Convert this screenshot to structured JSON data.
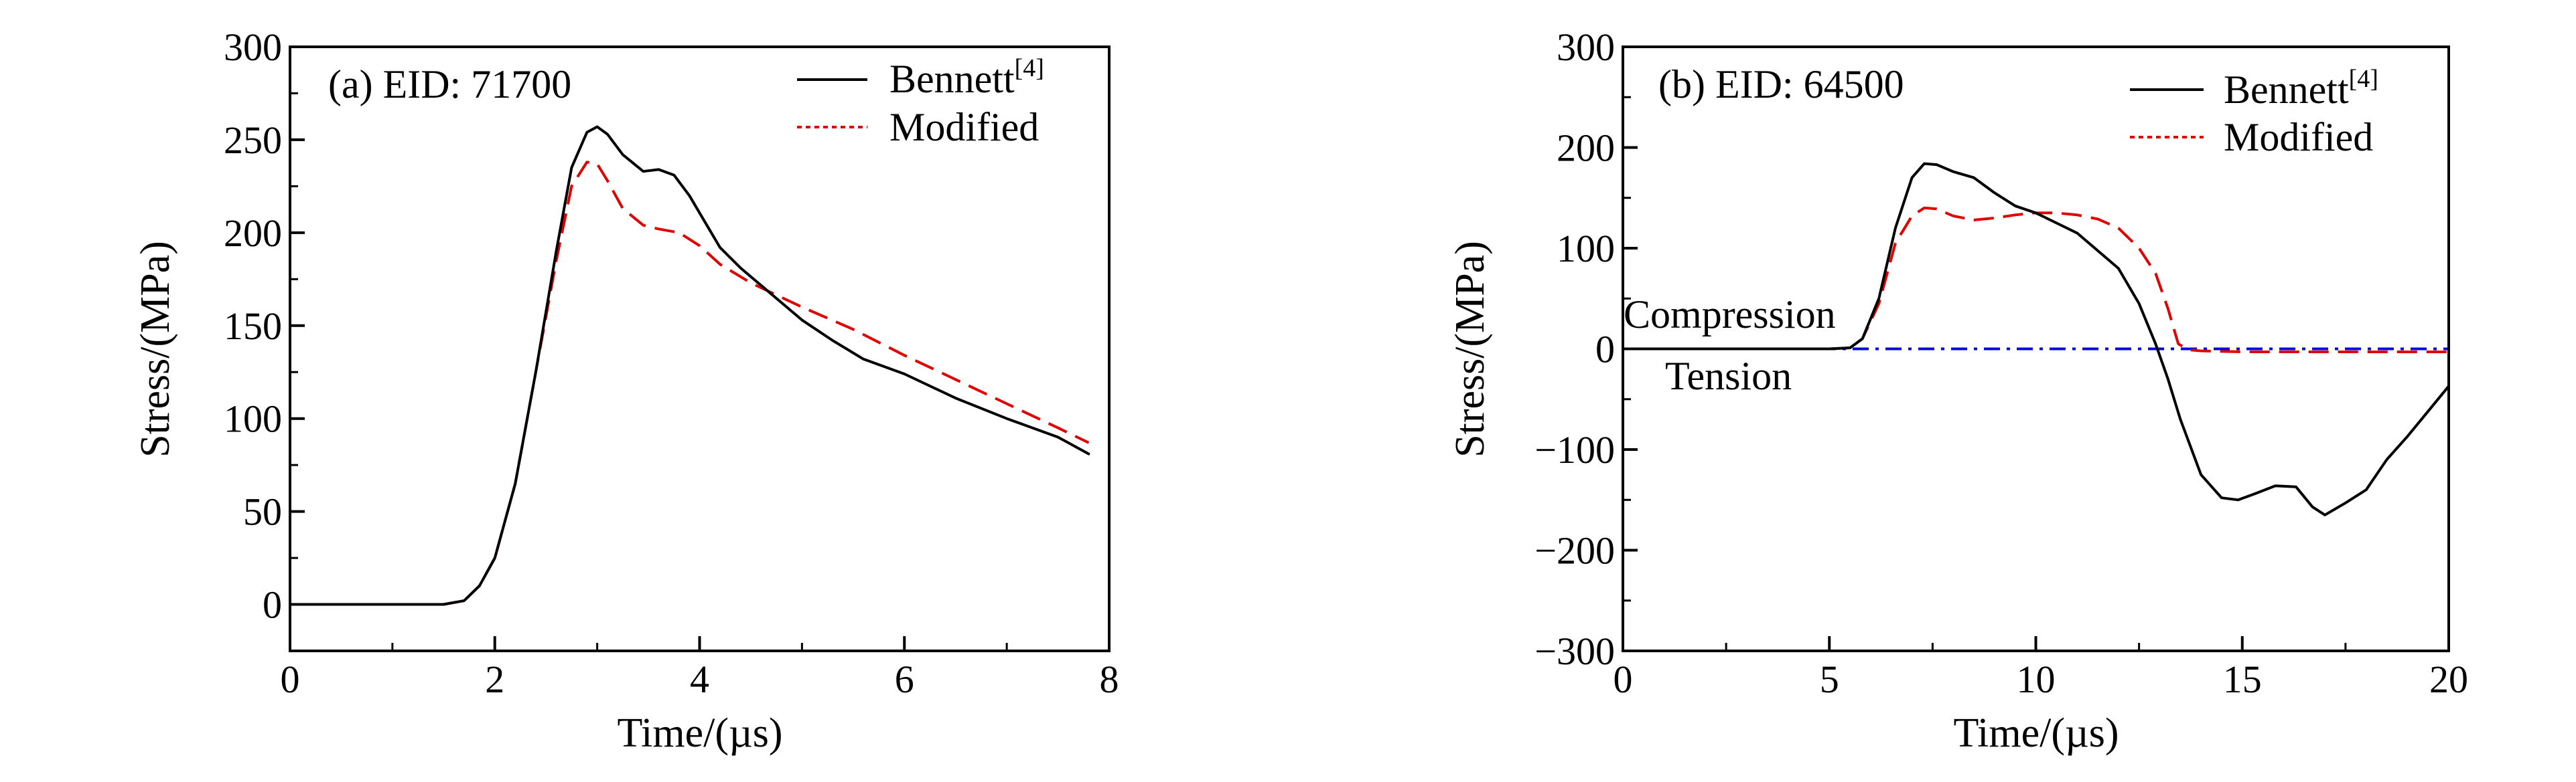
{
  "chart_data": [
    {
      "type": "line",
      "panel_label": "(a) EID: 71700",
      "xlabel": "Time/(µs)",
      "ylabel": "Stress/(MPa)",
      "xlim": [
        0,
        8
      ],
      "ylim": [
        -25,
        300
      ],
      "xticks": [
        0,
        2,
        4,
        6,
        8
      ],
      "yticks": [
        0,
        50,
        100,
        150,
        200,
        250,
        300
      ],
      "grid": false,
      "legend_position": "top-right",
      "series": [
        {
          "name": "Bennett",
          "name_sup": "[4]",
          "color": "#000000",
          "style": "solid",
          "x": [
            0,
            1.0,
            1.5,
            1.7,
            1.85,
            2.0,
            2.2,
            2.4,
            2.6,
            2.75,
            2.9,
            3.0,
            3.1,
            3.25,
            3.45,
            3.6,
            3.75,
            3.9,
            4.05,
            4.2,
            4.4,
            4.7,
            5.0,
            5.3,
            5.6,
            6.0,
            6.5,
            7.0,
            7.5,
            7.8
          ],
          "y": [
            0,
            0,
            0,
            2,
            10,
            25,
            65,
            125,
            190,
            235,
            254,
            257,
            253,
            242,
            233,
            234,
            231,
            220,
            206,
            192,
            181,
            167,
            153,
            142,
            132,
            124,
            111,
            100,
            90,
            81
          ]
        },
        {
          "name": "Modified",
          "color": "#e00000",
          "style": "dashed",
          "x": [
            0,
            1.0,
            1.5,
            1.7,
            1.85,
            2.0,
            2.2,
            2.4,
            2.6,
            2.75,
            2.9,
            3.0,
            3.1,
            3.25,
            3.45,
            3.6,
            3.8,
            4.0,
            4.2,
            4.5,
            5.0,
            5.5,
            6.0,
            6.5,
            7.0,
            7.5,
            7.8
          ],
          "y": [
            0,
            0,
            0,
            2,
            10,
            25,
            65,
            125,
            185,
            225,
            238,
            237,
            228,
            213,
            204,
            202,
            200,
            193,
            183,
            173,
            160,
            148,
            134,
            121,
            108,
            95,
            87
          ]
        }
      ]
    },
    {
      "type": "line",
      "panel_label": "(b) EID: 64500",
      "xlabel": "Time/(µs)",
      "ylabel": "Stress/(MPa)",
      "xlim": [
        0,
        20
      ],
      "ylim": [
        -300,
        300
      ],
      "xticks": [
        0,
        5,
        10,
        15,
        20
      ],
      "yticks": [
        -300,
        -200,
        -100,
        0,
        100,
        200,
        300
      ],
      "grid": false,
      "legend_position": "top-right",
      "annotations": [
        "Compression",
        "Tension"
      ],
      "series": [
        {
          "name": "Bennett",
          "name_sup": "[4]",
          "color": "#000000",
          "style": "solid",
          "x": [
            0,
            5.0,
            5.5,
            5.8,
            6.2,
            6.6,
            7.0,
            7.3,
            7.6,
            8.0,
            8.5,
            9.0,
            9.5,
            10.0,
            11.0,
            12.0,
            12.5,
            12.9,
            13.2,
            13.5,
            14.0,
            14.5,
            14.9,
            15.3,
            15.8,
            16.3,
            16.7,
            17.0,
            17.5,
            18.0,
            18.5,
            19.0,
            19.5,
            20.0
          ],
          "y": [
            0,
            0,
            1,
            10,
            50,
            120,
            170,
            184,
            183,
            176,
            170,
            155,
            142,
            135,
            115,
            80,
            45,
            5,
            -30,
            -70,
            -125,
            -148,
            -150,
            -144,
            -136,
            -137,
            -157,
            -165,
            -153,
            -140,
            -110,
            -87,
            -62,
            -37
          ]
        },
        {
          "name": "Modified",
          "color": "#e00000",
          "style": "dashed",
          "x": [
            0,
            5.0,
            5.5,
            5.8,
            6.2,
            6.6,
            7.0,
            7.3,
            7.6,
            8.0,
            8.5,
            9.0,
            9.5,
            10.0,
            10.5,
            11.0,
            11.5,
            12.0,
            12.5,
            12.9,
            13.2,
            13.45,
            13.7,
            14.0,
            15.0,
            17.0,
            20.0
          ],
          "y": [
            0,
            0,
            1,
            10,
            45,
            105,
            132,
            140,
            139,
            132,
            128,
            130,
            133,
            135,
            135,
            133,
            129,
            120,
            100,
            75,
            40,
            5,
            -1,
            -2,
            -3,
            -3,
            -3
          ]
        },
        {
          "name": "",
          "color": "#0000dd",
          "style": "dashdot",
          "x": [
            0,
            20
          ],
          "y": [
            0,
            0
          ]
        }
      ]
    }
  ]
}
